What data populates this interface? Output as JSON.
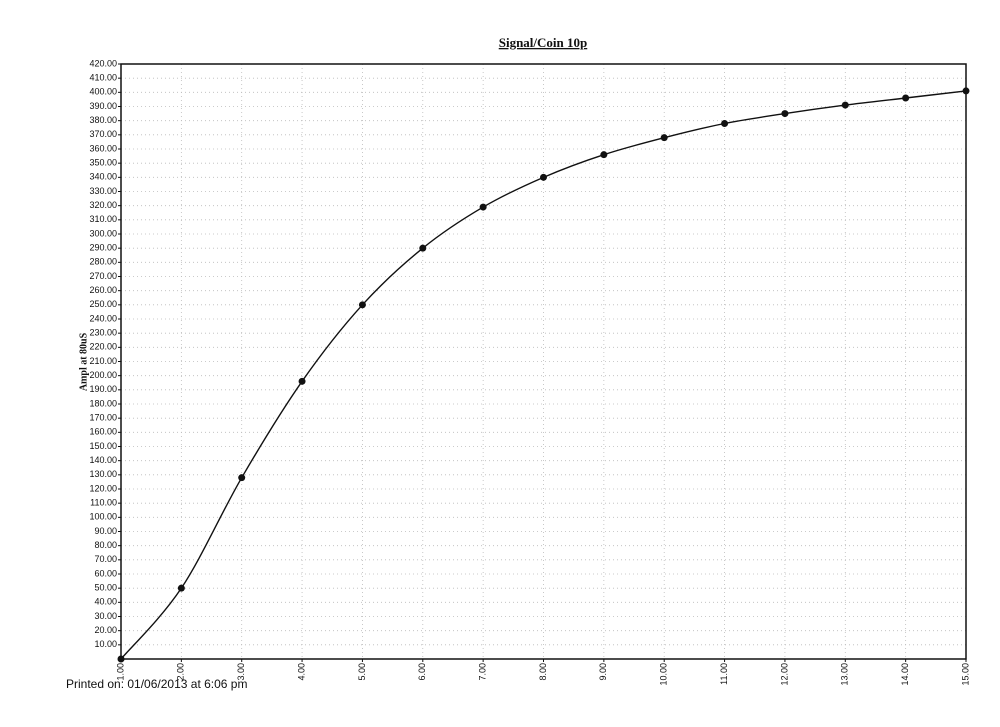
{
  "chart_data": {
    "type": "line",
    "title": "Signal/Coin 10p",
    "y_label": "Ampl at 80uS",
    "footer": "Printed on: 01/06/2013 at 6:06 pm",
    "x": [
      1,
      2,
      3,
      4,
      5,
      6,
      7,
      8,
      9,
      10,
      11,
      12,
      13,
      14,
      15
    ],
    "series": [
      {
        "color": "#111111",
        "values": [
          0,
          50,
          128,
          196,
          250,
          290,
          319,
          340,
          356,
          368,
          378,
          385,
          391,
          396,
          401
        ]
      }
    ],
    "xlim": [
      1,
      15
    ],
    "xticks": [
      {
        "value": 1,
        "label": "1.00"
      },
      {
        "value": 2,
        "label": "2.00"
      },
      {
        "value": 3,
        "label": "3.00"
      },
      {
        "value": 4,
        "label": "4.00"
      },
      {
        "value": 5,
        "label": "5.00"
      },
      {
        "value": 6,
        "label": "6.00"
      },
      {
        "value": 7,
        "label": "7.00"
      },
      {
        "value": 8,
        "label": "8.00"
      },
      {
        "value": 9,
        "label": "9.00"
      },
      {
        "value": 10,
        "label": "10.00"
      },
      {
        "value": 11,
        "label": "11.00"
      },
      {
        "value": 12,
        "label": "12.00"
      },
      {
        "value": 13,
        "label": "13.00"
      },
      {
        "value": 14,
        "label": "14.00"
      },
      {
        "value": 15,
        "label": "15.00"
      }
    ],
    "ylim": [
      0,
      420
    ],
    "yticks": [
      {
        "value": 10,
        "label": "10.00"
      },
      {
        "value": 20,
        "label": "20.00"
      },
      {
        "value": 30,
        "label": "30.00"
      },
      {
        "value": 40,
        "label": "40.00"
      },
      {
        "value": 50,
        "label": "50.00"
      },
      {
        "value": 60,
        "label": "60.00"
      },
      {
        "value": 70,
        "label": "70.00"
      },
      {
        "value": 80,
        "label": "80.00"
      },
      {
        "value": 90,
        "label": "90.00"
      },
      {
        "value": 100,
        "label": "100.00"
      },
      {
        "value": 110,
        "label": "110.00"
      },
      {
        "value": 120,
        "label": "120.00"
      },
      {
        "value": 130,
        "label": "130.00"
      },
      {
        "value": 140,
        "label": "140.00"
      },
      {
        "value": 150,
        "label": "150.00"
      },
      {
        "value": 160,
        "label": "160.00"
      },
      {
        "value": 170,
        "label": "170.00"
      },
      {
        "value": 180,
        "label": "180.00"
      },
      {
        "value": 190,
        "label": "190.00"
      },
      {
        "value": 200,
        "label": "200.00"
      },
      {
        "value": 210,
        "label": "210.00"
      },
      {
        "value": 220,
        "label": "220.00"
      },
      {
        "value": 230,
        "label": "230.00"
      },
      {
        "value": 240,
        "label": "240.00"
      },
      {
        "value": 250,
        "label": "250.00"
      },
      {
        "value": 260,
        "label": "260.00"
      },
      {
        "value": 270,
        "label": "270.00"
      },
      {
        "value": 280,
        "label": "280.00"
      },
      {
        "value": 290,
        "label": "290.00"
      },
      {
        "value": 300,
        "label": "300.00"
      },
      {
        "value": 310,
        "label": "310.00"
      },
      {
        "value": 320,
        "label": "320.00"
      },
      {
        "value": 330,
        "label": "330.00"
      },
      {
        "value": 340,
        "label": "340.00"
      },
      {
        "value": 350,
        "label": "350.00"
      },
      {
        "value": 360,
        "label": "360.00"
      },
      {
        "value": 370,
        "label": "370.00"
      },
      {
        "value": 380,
        "label": "380.00"
      },
      {
        "value": 390,
        "label": "390.00"
      },
      {
        "value": 400,
        "label": "400.00"
      },
      {
        "value": 410,
        "label": "410.00"
      },
      {
        "value": 420,
        "label": "420.00"
      }
    ],
    "grid": true
  }
}
